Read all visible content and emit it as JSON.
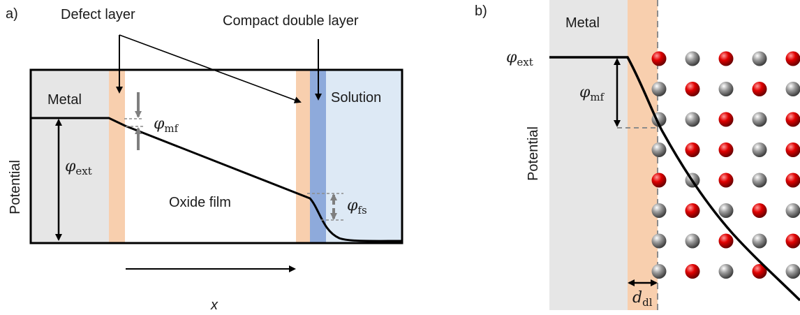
{
  "panel_a": {
    "label": "a)",
    "labels": {
      "defect_layer": "Defect layer",
      "compact_double_layer": "Compact double layer",
      "metal": "Metal",
      "solution": "Solution",
      "oxide_film": "Oxide film",
      "potential_axis": "Potential",
      "x_axis": "x"
    },
    "symbols": {
      "phi_mf": {
        "base": "φ",
        "sub": "mf"
      },
      "phi_ext": {
        "base": "φ",
        "sub": "ext"
      },
      "phi_fs": {
        "base": "φ",
        "sub": "fs"
      }
    }
  },
  "panel_b": {
    "label": "b)",
    "labels": {
      "metal": "Metal",
      "potential_axis": "Potential"
    },
    "symbols": {
      "phi_ext": {
        "base": "φ",
        "sub": "ext"
      },
      "phi_mf": {
        "base": "φ",
        "sub": "mf"
      },
      "d_dl": {
        "base": "d",
        "sub": "dl"
      }
    },
    "lattice": {
      "columns": 5,
      "rows": 8,
      "red_cells": [
        [
          0,
          0
        ],
        [
          2,
          0
        ],
        [
          4,
          0
        ],
        [
          1,
          1
        ],
        [
          3,
          1
        ],
        [
          2,
          2
        ],
        [
          4,
          2
        ],
        [
          1,
          3
        ],
        [
          2,
          3
        ],
        [
          4,
          3
        ],
        [
          0,
          4
        ],
        [
          2,
          4
        ],
        [
          4,
          4
        ],
        [
          1,
          5
        ],
        [
          3,
          5
        ],
        [
          2,
          6
        ],
        [
          4,
          6
        ],
        [
          1,
          7
        ],
        [
          3,
          7
        ]
      ]
    }
  },
  "colors": {
    "metal": "#e6e6e6",
    "defect_layer": "#f8cfae",
    "compact_layer": "#8eaadb",
    "solution": "#dde9f5",
    "line": "#000000",
    "guide": "#8c8c8c",
    "arrow_grey": "#7f7f7f",
    "atom_red": "#e00000",
    "atom_grey": "#9a9a9a"
  }
}
